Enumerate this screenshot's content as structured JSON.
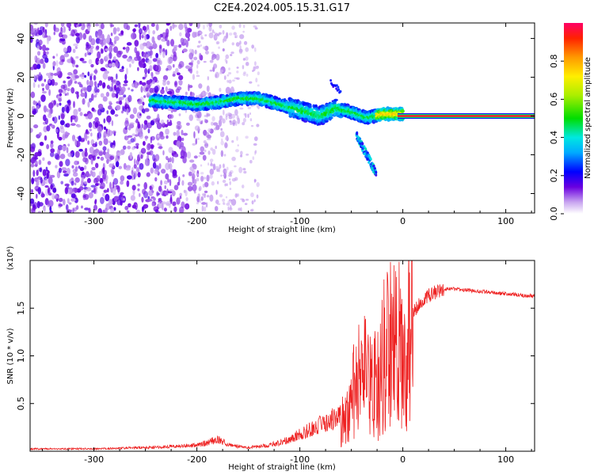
{
  "title": "C2E4.2024.005.15.31.G17",
  "colors": {
    "snr_line": "#ee2222",
    "spectrogram_scatter": "#7a22dd",
    "frame": "#000000"
  },
  "chart_data": [
    {
      "type": "heatmap",
      "name_printed": "",
      "xlabel": "Height of straight line (km)",
      "ylabel": "Frequency (Hz)",
      "xlim": [
        -362,
        128
      ],
      "ylim": [
        -50,
        48
      ],
      "xticks": [
        -300,
        -200,
        -100,
        0,
        100
      ],
      "xtick_labels": [
        "-300",
        "-200",
        "-100",
        "0",
        "100"
      ],
      "yticks": [
        -40,
        -20,
        0,
        20,
        40
      ],
      "ytick_labels": [
        "-40",
        "-20",
        "0",
        "20",
        "40"
      ],
      "colorbar": {
        "label": "Normalized spectral amplitude",
        "range": [
          0,
          1
        ],
        "ticks": [
          0,
          0.2,
          0.4,
          0.6,
          0.8
        ],
        "tick_labels": [
          "0.0",
          "0.2",
          "0.4",
          "0.6",
          "0.8"
        ],
        "colormap": "rainbow"
      },
      "features": {
        "noise_region_x": [
          -362,
          -200
        ],
        "main_band": [
          {
            "x": -245,
            "f": 8
          },
          {
            "x": -220,
            "f": 7
          },
          {
            "x": -200,
            "f": 6
          },
          {
            "x": -180,
            "f": 7
          },
          {
            "x": -160,
            "f": 9
          },
          {
            "x": -140,
            "f": 9
          },
          {
            "x": -120,
            "f": 6
          },
          {
            "x": -100,
            "f": 3
          },
          {
            "x": -80,
            "f": 0
          },
          {
            "x": -65,
            "f": 4
          },
          {
            "x": -50,
            "f": 2
          },
          {
            "x": -35,
            "f": -1
          },
          {
            "x": -20,
            "f": 1
          },
          {
            "x": 0,
            "f": 1
          }
        ],
        "lower_branch": [
          {
            "x": -45,
            "f": -10
          },
          {
            "x": -38,
            "f": -17
          },
          {
            "x": -32,
            "f": -23
          },
          {
            "x": -26,
            "f": -30
          }
        ],
        "upper_branch": [
          {
            "x": -70,
            "f": 18
          },
          {
            "x": -60,
            "f": 12
          }
        ],
        "carrier_line": {
          "x_start": 0,
          "x_end": 128,
          "f": 0,
          "amplitude": 0.95
        }
      }
    },
    {
      "type": "line",
      "name_printed": "",
      "xlabel": "Height of straight line (km)",
      "ylabel": "SNR (10 * v/v)",
      "yscale_note": "(x10⁴)",
      "xlim": [
        -362,
        128
      ],
      "ylim": [
        0,
        2.0
      ],
      "xticks": [
        -300,
        -200,
        -100,
        0,
        100
      ],
      "xtick_labels": [
        "-300",
        "-200",
        "-100",
        "0",
        "100"
      ],
      "yticks": [
        0.5,
        1.0,
        1.5
      ],
      "ytick_labels": [
        "0.5",
        "1.0",
        "1.5"
      ],
      "series": [
        {
          "x": [
            -362,
            -300,
            -250,
            -200,
            -190,
            -180,
            -170,
            -160,
            -150,
            -130,
            -120,
            -110,
            -100,
            -90,
            -80,
            -70,
            -60,
            -50,
            -45,
            -40,
            -35,
            -30,
            -25,
            -20,
            -15,
            -10,
            -5,
            0,
            5,
            10,
            20,
            30,
            40,
            50,
            60,
            70,
            80,
            90,
            100,
            110,
            120,
            128
          ],
          "y": [
            0.02,
            0.02,
            0.03,
            0.05,
            0.07,
            0.1,
            0.06,
            0.04,
            0.03,
            0.05,
            0.07,
            0.1,
            0.14,
            0.18,
            0.22,
            0.26,
            0.3,
            0.55,
            0.8,
            0.75,
            0.9,
            0.7,
            0.8,
            0.95,
            1.3,
            1.25,
            1.2,
            1.1,
            1.25,
            1.45,
            1.6,
            1.66,
            1.7,
            1.7,
            1.69,
            1.68,
            1.67,
            1.66,
            1.65,
            1.64,
            1.63,
            1.63
          ]
        }
      ]
    }
  ]
}
